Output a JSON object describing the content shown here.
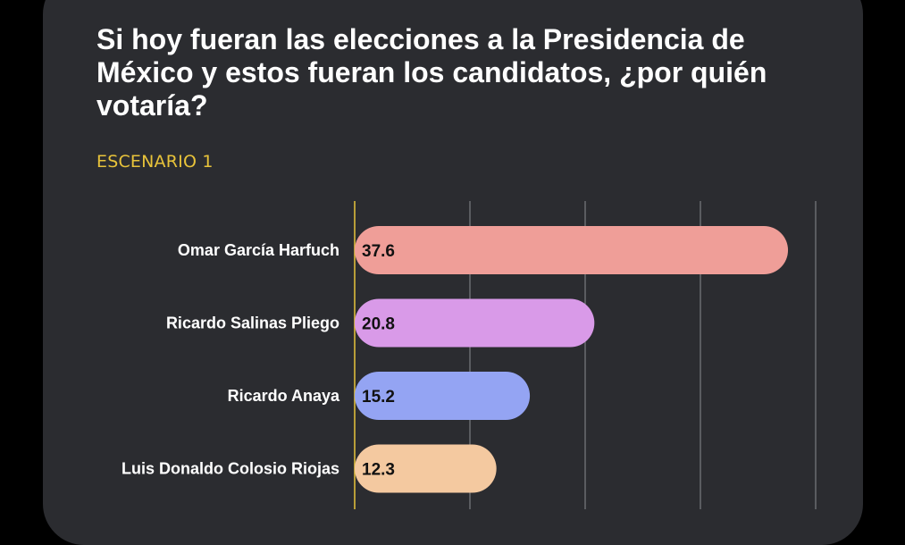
{
  "title": "Si hoy fueran las elecciones a la Presidencia de México y estos fueran los candidatos, ¿por quién votaría?",
  "subtitle": "ESCENARIO 1",
  "colors": {
    "background": "#2b2c30",
    "accent": "#e8c33a",
    "gridline": "#8a8b8f"
  },
  "chart_data": {
    "type": "bar",
    "orientation": "horizontal",
    "categories": [
      "Omar García Harfuch",
      "Ricardo Salinas Pliego",
      "Ricardo Anaya",
      "Luis Donaldo Colosio Riojas"
    ],
    "values": [
      37.6,
      20.8,
      15.2,
      12.3
    ],
    "value_labels": [
      "37.6",
      "20.8",
      "15.2",
      "12.3"
    ],
    "bar_colors": [
      "#ef9e98",
      "#d99ae8",
      "#94a4f3",
      "#f4c9a0"
    ],
    "xlim": [
      0,
      40
    ],
    "grid": true,
    "xlabel": "",
    "ylabel": ""
  }
}
